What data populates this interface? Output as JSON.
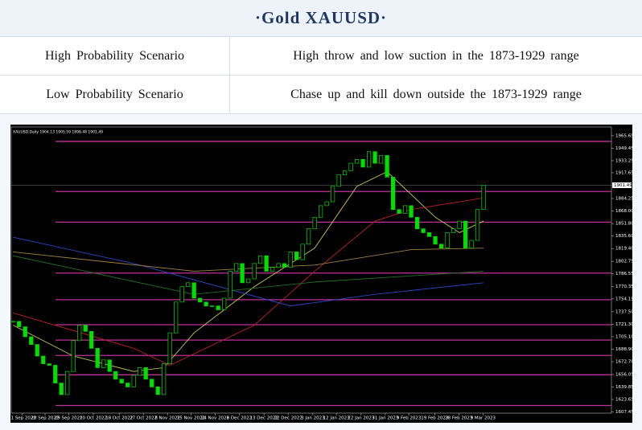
{
  "header": {
    "title": "·Gold XAUUSD·"
  },
  "table": {
    "rows": [
      [
        "High Probability Scenario",
        "High throw and low suction in the 1873-1929 range"
      ],
      [
        "Low Probability Scenario",
        "Chase up and kill down outside the 1873-1929 range"
      ]
    ]
  },
  "chart_data": {
    "type": "candlestick",
    "title": "XAUUSD,Daily 1904.13 1905.59 1898.48 1901.49",
    "values": [
      1725,
      1718,
      1705,
      1695,
      1680,
      1670,
      1668,
      1645,
      1630,
      1660,
      1700,
      1720,
      1712,
      1690,
      1665,
      1675,
      1660,
      1650,
      1645,
      1640,
      1655,
      1665,
      1650,
      1640,
      1630,
      1670,
      1710,
      1750,
      1770,
      1775,
      1755,
      1750,
      1745,
      1745,
      1740,
      1755,
      1790,
      1800,
      1775,
      1780,
      1800,
      1810,
      1790,
      1795,
      1800,
      1795,
      1815,
      1805,
      1825,
      1845,
      1860,
      1875,
      1880,
      1900,
      1915,
      1920,
      1930,
      1935,
      1925,
      1945,
      1930,
      1940,
      1912,
      1870,
      1865,
      1875,
      1860,
      1845,
      1840,
      1835,
      1825,
      1820,
      1840,
      1845,
      1855,
      1820,
      1830,
      1870,
      1901.49
    ],
    "up_color": "#00e000",
    "down_color": "#00e000",
    "series": [
      {
        "color": "#c8c850",
        "x": [
          0,
          10,
          20,
          25,
          30,
          40,
          50,
          57,
          62,
          70,
          74,
          78
        ],
        "values": [
          1720,
          1680,
          1660,
          1665,
          1710,
          1770,
          1820,
          1900,
          1919,
          1860,
          1840,
          1855
        ]
      },
      {
        "color": "#c02020",
        "x": [
          0,
          20,
          26,
          40,
          50,
          60,
          66,
          74,
          78
        ],
        "values": [
          1736,
          1690,
          1668,
          1720,
          1790,
          1855,
          1870,
          1880,
          1885
        ]
      },
      {
        "color": "#2848c8",
        "x": [
          0,
          20,
          46,
          60,
          78
        ],
        "values": [
          1834,
          1800,
          1745,
          1760,
          1775
        ]
      },
      {
        "color": "#a08040",
        "x": [
          0,
          30,
          50,
          66,
          78
        ],
        "values": [
          1815,
          1790,
          1798,
          1818,
          1820
        ]
      },
      {
        "color": "#207020",
        "x": [
          0,
          30,
          50,
          78
        ],
        "values": [
          1810,
          1760,
          1776,
          1790
        ]
      }
    ],
    "levels": [
      1958.3,
      1893.4,
      1853.6,
      1787.6,
      1753.1,
      1720.6,
      1700.7,
      1680.8,
      1655.7,
      1615.9
    ],
    "level_color": "#c0309a",
    "current_price": 1901.49,
    "xlim": [
      -0.3,
      99.2
    ],
    "ylim": [
      1606,
      1977
    ],
    "yticks": [
      1965.65,
      1949.45,
      1933.25,
      1917.65,
      1884.25,
      {
        "value": 1868,
        "label": "1868.00"
      },
      {
        "value": 1851.8,
        "label": "1851.80"
      },
      {
        "value": 1835.6,
        "label": "1835.60"
      },
      {
        "value": 1819.4,
        "label": "1819.40"
      },
      1802.75,
      1786.55,
      1770.35,
      1754.15,
      {
        "value": 1737.5,
        "label": "1737.50"
      },
      {
        "value": 1721.3,
        "label": "1721.30"
      },
      {
        "value": 1705.1,
        "label": "1705.10"
      },
      {
        "value": 1688.9,
        "label": "1688.90"
      },
      {
        "value": 1672.7,
        "label": "1672.70"
      },
      1656.05,
      1639.85,
      1623.65,
      1607.45
    ],
    "xticks": [
      {
        "value": 1.5,
        "label": "11 Sep 2022"
      },
      {
        "value": 5.3,
        "label": "20 Sep 2022"
      },
      {
        "value": 9.2,
        "label": "29 Sep 2022"
      },
      {
        "value": 13.3,
        "label": "10 Oct 2022"
      },
      {
        "value": 17.6,
        "label": "18 Oct 2022"
      },
      {
        "value": 21.6,
        "label": "27 Oct 2022"
      },
      {
        "value": 25.6,
        "label": "8 Nov 2022"
      },
      {
        "value": 29.5,
        "label": "15 Nov 2022"
      },
      {
        "value": 33.5,
        "label": "24 Nov 2022"
      },
      {
        "value": 37.5,
        "label": "6 Dec 2022"
      },
      {
        "value": 41.6,
        "label": "13 Dec 2022"
      },
      {
        "value": 45.6,
        "label": "22 Dec 2022"
      },
      {
        "value": 49.7,
        "label": "3 Jan 2023"
      },
      {
        "value": 53.6,
        "label": "12 Jan 2023"
      },
      {
        "value": 57.7,
        "label": "22 Jan 2023"
      },
      {
        "value": 61.7,
        "label": "31 Jan 2023"
      },
      {
        "value": 65.6,
        "label": "9 Feb 2023"
      },
      {
        "value": 69.9,
        "label": "19 Feb 2023"
      },
      {
        "value": 73.9,
        "label": "28 Feb 2023"
      },
      {
        "value": 77.9,
        "label": "9 Mar 2023"
      }
    ]
  }
}
